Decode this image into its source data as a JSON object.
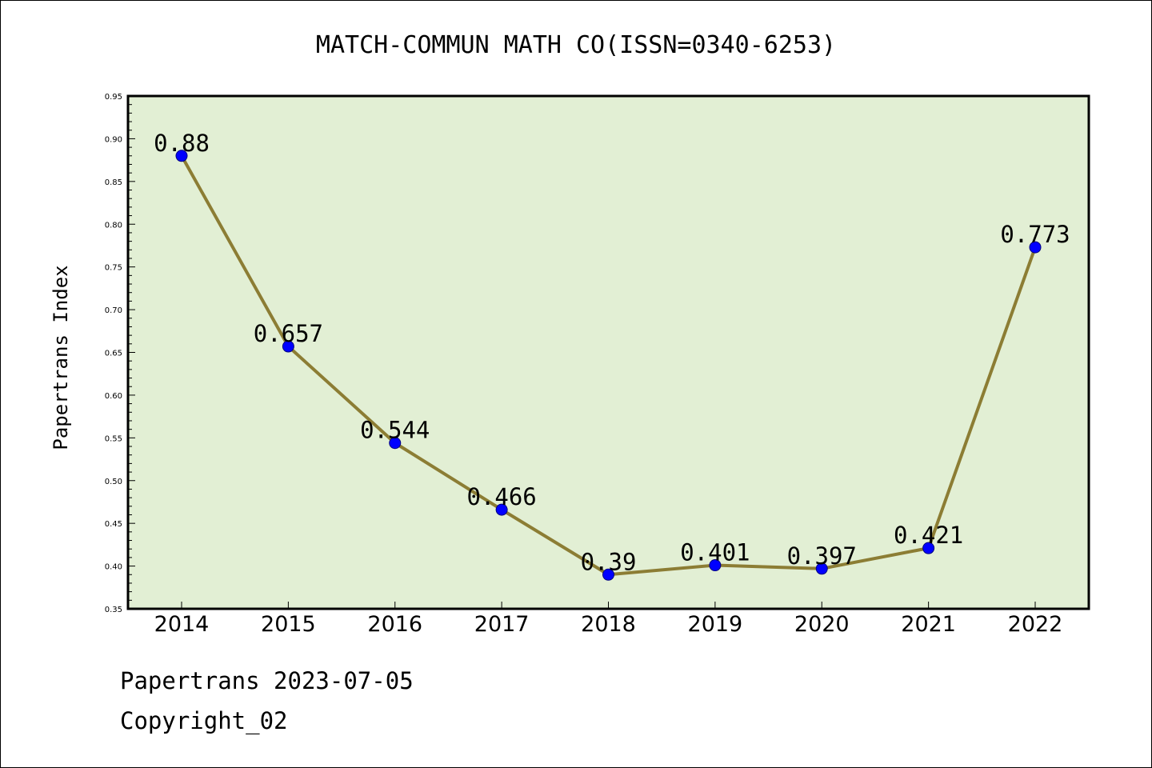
{
  "chart_data": {
    "type": "line",
    "title": "MATCH-COMMUN MATH CO(ISSN=0340-6253)",
    "xlabel": "",
    "ylabel": "Papertrans Index",
    "categories": [
      "2014",
      "2015",
      "2016",
      "2017",
      "2018",
      "2019",
      "2020",
      "2021",
      "2022"
    ],
    "series": [
      {
        "values": [
          0.88,
          0.657,
          0.544,
          0.466,
          0.39,
          0.401,
          0.397,
          0.421,
          0.773
        ]
      }
    ],
    "data_labels": [
      "0.88",
      "0.657",
      "0.544",
      "0.466",
      "0.39",
      "0.401",
      "0.397",
      "0.421",
      "0.773"
    ],
    "ylim": [
      0.35,
      0.95
    ],
    "yticks": [
      "0.35",
      "0.40",
      "0.45",
      "0.50",
      "0.55",
      "0.60",
      "0.65",
      "0.70",
      "0.75",
      "0.80",
      "0.85",
      "0.90",
      "0.95"
    ],
    "grid": false,
    "legend": "none",
    "colors": {
      "plot_background": "#e2efd4",
      "line": "#8c7d34",
      "marker": "#0000ff",
      "marker_edge": "#000080"
    }
  },
  "footer": {
    "line1": "Papertrans 2023-07-05",
    "line2": "Copyright_02"
  }
}
